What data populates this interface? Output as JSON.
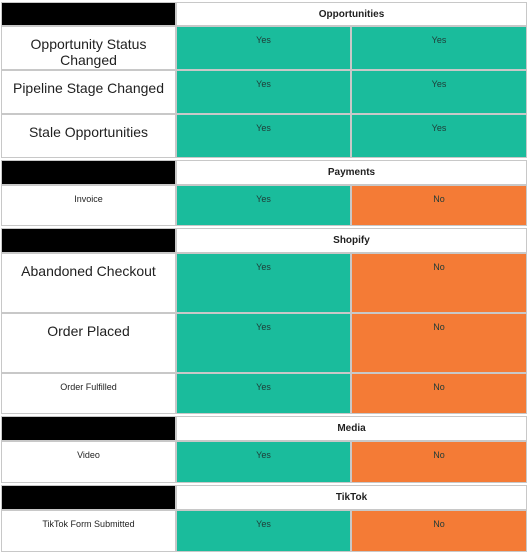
{
  "colors": {
    "yes": "#1abc9c",
    "no": "#f47b36",
    "header_black": "#000000",
    "grid_line": "#c8c8c8"
  },
  "sections": [
    {
      "title": "Opportunities",
      "rows": [
        {
          "label": "Opportunity Status Changed",
          "size": "big",
          "col1": "Yes",
          "col2": "Yes"
        },
        {
          "label": "Pipeline Stage Changed",
          "size": "big",
          "col1": "Yes",
          "col2": "Yes"
        },
        {
          "label": "Stale Opportunities",
          "size": "big",
          "col1": "Yes",
          "col2": "Yes"
        }
      ]
    },
    {
      "title": "Payments",
      "rows": [
        {
          "label": "Invoice",
          "size": "small",
          "col1": "Yes",
          "col2": "No"
        }
      ]
    },
    {
      "title": "Shopify",
      "rows": [
        {
          "label": "Abandoned Checkout",
          "size": "big",
          "col1": "Yes",
          "col2": "No"
        },
        {
          "label": "Order Placed",
          "size": "big",
          "col1": "Yes",
          "col2": "No"
        },
        {
          "label": "Order Fulfilled",
          "size": "small",
          "col1": "Yes",
          "col2": "No"
        }
      ]
    },
    {
      "title": "Media",
      "rows": [
        {
          "label": "Video",
          "size": "small",
          "col1": "Yes",
          "col2": "No"
        }
      ]
    },
    {
      "title": "TikTok",
      "rows": [
        {
          "label": "TikTok Form Submitted",
          "size": "small",
          "col1": "Yes",
          "col2": "No"
        }
      ]
    }
  ]
}
